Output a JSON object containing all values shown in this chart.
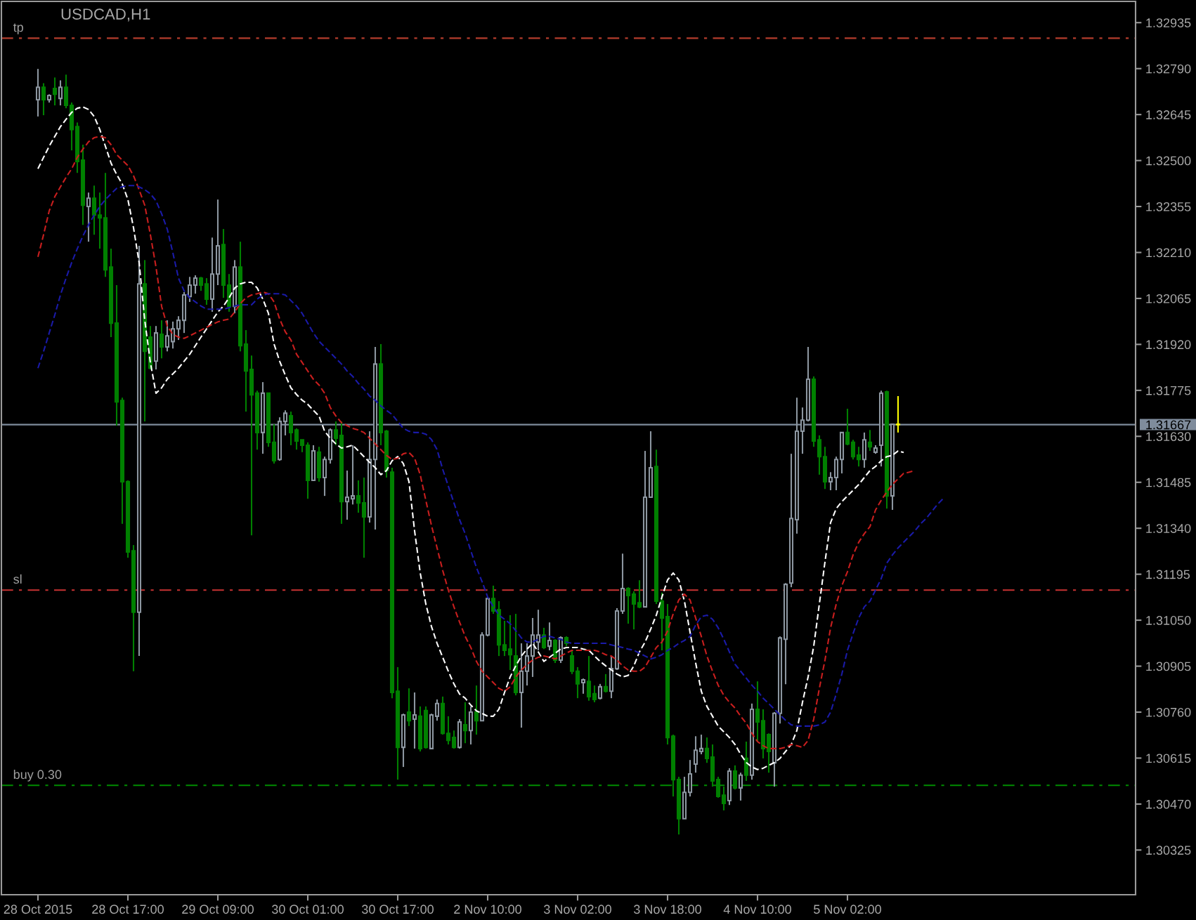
{
  "chart_data": {
    "type": "candlestick",
    "title": "USDCAD,H1",
    "categories": [
      "28 Oct 2015",
      null,
      null,
      null,
      null,
      null,
      null,
      null,
      null,
      null,
      null,
      null,
      null,
      null,
      null,
      null,
      "28 Oct 17:00",
      null,
      null,
      null,
      null,
      null,
      null,
      null,
      null,
      null,
      null,
      null,
      null,
      null,
      null,
      null,
      "29 Oct 09:00",
      null,
      null,
      null,
      null,
      null,
      null,
      null,
      null,
      null,
      null,
      null,
      null,
      null,
      null,
      null,
      "30 Oct 01:00",
      null,
      null,
      null,
      null,
      null,
      null,
      null,
      null,
      null,
      null,
      null,
      null,
      null,
      null,
      null,
      "30 Oct 17:00",
      null,
      null,
      null,
      null,
      null,
      null,
      null,
      null,
      null,
      null,
      null,
      null,
      null,
      null,
      null,
      "2 Nov 10:00",
      null,
      null,
      null,
      null,
      null,
      null,
      null,
      null,
      null,
      null,
      null,
      null,
      null,
      null,
      null,
      "3 Nov 02:00",
      null,
      null,
      null,
      null,
      null,
      null,
      null,
      null,
      null,
      null,
      null,
      null,
      null,
      null,
      null,
      "3 Nov 18:00",
      null,
      null,
      null,
      null,
      null,
      null,
      null,
      null,
      null,
      null,
      null,
      null,
      null,
      null,
      null,
      "4 Nov 10:00",
      null,
      null,
      null,
      null,
      null,
      null,
      null,
      null,
      null,
      null,
      null,
      null,
      null,
      null,
      null,
      "5 Nov 02:00",
      null,
      null,
      null,
      null,
      null,
      null,
      null,
      null,
      null,
      null,
      null,
      null,
      null,
      null,
      null,
      null,
      null
    ],
    "ohlc": [
      [
        1.32692,
        1.32789,
        1.32639,
        1.32731
      ],
      [
        1.32731,
        1.32744,
        1.32643,
        1.32692
      ],
      [
        1.32692,
        1.32709,
        1.32683,
        1.32705
      ],
      [
        1.32727,
        1.32762,
        1.32674,
        1.32709
      ],
      [
        1.32696,
        1.32753,
        1.32674,
        1.32731
      ],
      [
        1.32731,
        1.32771,
        1.32665,
        1.32674
      ],
      [
        1.32674,
        1.32683,
        1.32532,
        1.32598
      ],
      [
        1.32607,
        1.3262,
        1.32461,
        1.32497
      ],
      [
        1.32501,
        1.3255,
        1.32297,
        1.32359
      ],
      [
        1.32355,
        1.32399,
        1.32244,
        1.32381
      ],
      [
        1.32381,
        1.32421,
        1.32266,
        1.32328
      ],
      [
        1.32328,
        1.32399,
        1.32222,
        1.32319
      ],
      [
        1.32319,
        1.32461,
        1.32133,
        1.32155
      ],
      [
        1.32164,
        1.32222,
        1.31943,
        1.31987
      ],
      [
        1.31987,
        1.32107,
        1.31664,
        1.31739
      ],
      [
        1.31743,
        1.31752,
        1.31354,
        1.31487
      ],
      [
        1.31487,
        1.31491,
        1.31247,
        1.31265
      ],
      [
        1.31269,
        1.31287,
        1.30889,
        1.31075
      ],
      [
        1.31075,
        1.32231,
        1.30937,
        1.32111
      ],
      [
        1.32111,
        1.32186,
        1.31677,
        1.31898
      ],
      [
        1.31943,
        1.31978,
        1.31841,
        1.31845
      ],
      [
        1.31867,
        1.31978,
        1.31841,
        1.31956
      ],
      [
        1.31952,
        1.31996,
        1.31876,
        1.31912
      ],
      [
        1.31912,
        1.31996,
        1.31898,
        1.31947
      ],
      [
        1.31929,
        1.31992,
        1.31907,
        1.31969
      ],
      [
        1.31969,
        1.32009,
        1.31934,
        1.31996
      ],
      [
        1.31996,
        1.32085,
        1.31956,
        1.32076
      ],
      [
        1.32071,
        1.32133,
        1.32054,
        1.32107
      ],
      [
        1.32107,
        1.32138,
        1.3208,
        1.32129
      ],
      [
        1.32129,
        1.32133,
        1.32089,
        1.32107
      ],
      [
        1.32111,
        1.32129,
        1.32045,
        1.32063
      ],
      [
        1.32063,
        1.32257,
        1.32023,
        1.32142
      ],
      [
        1.32142,
        1.32377,
        1.32107,
        1.32231
      ],
      [
        1.32235,
        1.32284,
        1.32067,
        1.32107
      ],
      [
        1.32107,
        1.32142,
        1.32023,
        1.3204
      ],
      [
        1.3204,
        1.32186,
        1.32018,
        1.32164
      ],
      [
        1.32164,
        1.32244,
        1.31898,
        1.31916
      ],
      [
        1.31921,
        1.31965,
        1.31708,
        1.31836
      ],
      [
        1.31841,
        1.31885,
        1.31318,
        1.31761
      ],
      [
        1.31766,
        1.31774,
        1.31588,
        1.31642
      ],
      [
        1.31642,
        1.31801,
        1.31575,
        1.31766
      ],
      [
        1.31766,
        1.31766,
        1.31597,
        1.31611
      ],
      [
        1.31611,
        1.31668,
        1.31544,
        1.31553
      ],
      [
        1.31557,
        1.3169,
        1.31553,
        1.31677
      ],
      [
        1.31677,
        1.31712,
        1.31633,
        1.31703
      ],
      [
        1.31695,
        1.31708,
        1.31602,
        1.31642
      ],
      [
        1.3165,
        1.31655,
        1.31588,
        1.31615
      ],
      [
        1.31619,
        1.31619,
        1.3158,
        1.31602
      ],
      [
        1.31602,
        1.31611,
        1.31433,
        1.31491
      ],
      [
        1.31491,
        1.31602,
        1.31491,
        1.31584
      ],
      [
        1.3158,
        1.31597,
        1.31487,
        1.315
      ],
      [
        1.315,
        1.31566,
        1.31442,
        1.31557
      ],
      [
        1.31557,
        1.31655,
        1.31544,
        1.3165
      ],
      [
        1.3165,
        1.31677,
        1.31602,
        1.31624
      ],
      [
        1.31633,
        1.31677,
        1.31354,
        1.31424
      ],
      [
        1.31424,
        1.31522,
        1.31367,
        1.31438
      ],
      [
        1.31433,
        1.31602,
        1.31415,
        1.31442
      ],
      [
        1.31442,
        1.31491,
        1.31389,
        1.3142
      ],
      [
        1.3142,
        1.315,
        1.31247,
        1.31376
      ],
      [
        1.31376,
        1.31646,
        1.31358,
        1.31557
      ],
      [
        1.31557,
        1.31912,
        1.31336,
        1.31858
      ],
      [
        1.31858,
        1.31921,
        1.31602,
        1.31642
      ],
      [
        1.31646,
        1.3165,
        1.315,
        1.31522
      ],
      [
        1.31517,
        1.31531,
        1.30804,
        1.30822
      ],
      [
        1.30826,
        1.30902,
        1.30547,
        1.30649
      ],
      [
        1.30649,
        1.30755,
        1.30587,
        1.30751
      ],
      [
        1.3076,
        1.30835,
        1.30716,
        1.30733
      ],
      [
        1.30738,
        1.30822,
        1.30645,
        1.30751
      ],
      [
        1.30747,
        1.30778,
        1.30636,
        1.30645
      ],
      [
        1.30765,
        1.30778,
        1.30645,
        1.30649
      ],
      [
        1.30645,
        1.30755,
        1.30645,
        1.30751
      ],
      [
        1.30747,
        1.308,
        1.30733,
        1.30787
      ],
      [
        1.30787,
        1.30809,
        1.30689,
        1.30693
      ],
      [
        1.30693,
        1.30747,
        1.30658,
        1.30671
      ],
      [
        1.3068,
        1.30702,
        1.30645,
        1.30649
      ],
      [
        1.30649,
        1.30738,
        1.30645,
        1.30729
      ],
      [
        1.3072,
        1.30791,
        1.30662,
        1.30702
      ],
      [
        1.30702,
        1.30778,
        1.30658,
        1.3076
      ],
      [
        1.3076,
        1.30844,
        1.30689,
        1.30733
      ],
      [
        1.30733,
        1.31012,
        1.30733,
        1.31003
      ],
      [
        1.31003,
        1.31123,
        1.30999,
        1.31118
      ],
      [
        1.31118,
        1.31159,
        1.3107,
        1.31079
      ],
      [
        1.31083,
        1.3111,
        1.30937,
        1.30972
      ],
      [
        1.30972,
        1.31048,
        1.30937,
        1.30955
      ],
      [
        1.30959,
        1.31066,
        1.30893,
        1.30941
      ],
      [
        1.30937,
        1.3107,
        1.30813,
        1.30822
      ],
      [
        1.30822,
        1.30977,
        1.30711,
        1.30889
      ],
      [
        1.30889,
        1.30977,
        1.30844,
        1.30937
      ],
      [
        1.30937,
        1.31057,
        1.30871,
        1.31003
      ],
      [
        1.30981,
        1.31083,
        1.30955,
        1.31003
      ],
      [
        1.31003,
        1.31026,
        1.30959,
        1.30964
      ],
      [
        1.30968,
        1.31043,
        1.30955,
        1.30986
      ],
      [
        1.30986,
        1.3099,
        1.30915,
        1.30924
      ],
      [
        1.30924,
        1.30999,
        1.30915,
        1.30995
      ],
      [
        1.30995,
        1.30999,
        1.30968,
        1.30977
      ],
      [
        1.30937,
        1.30955,
        1.3088,
        1.30889
      ],
      [
        1.30889,
        1.30902,
        1.30804,
        1.30849
      ],
      [
        1.30853,
        1.30866,
        1.30818,
        1.30862
      ],
      [
        1.30857,
        1.30937,
        1.30796,
        1.30809
      ],
      [
        1.30818,
        1.30844,
        1.30791,
        1.308
      ],
      [
        1.30804,
        1.30849,
        1.308,
        1.3084
      ],
      [
        1.3084,
        1.3088,
        1.30822,
        1.30826
      ],
      [
        1.30826,
        1.30937,
        1.30804,
        1.30897
      ],
      [
        1.30897,
        1.31088,
        1.30893,
        1.31079
      ],
      [
        1.31079,
        1.3126,
        1.3107,
        1.3115
      ],
      [
        1.3115,
        1.31154,
        1.31039,
        1.31128
      ],
      [
        1.31132,
        1.31141,
        1.31021,
        1.31101
      ],
      [
        1.31105,
        1.31176,
        1.31088,
        1.31092
      ],
      [
        1.31092,
        1.31584,
        1.31092,
        1.31438
      ],
      [
        1.31438,
        1.31646,
        1.31438,
        1.31531
      ],
      [
        1.31535,
        1.31588,
        1.31101,
        1.3111
      ],
      [
        1.3111,
        1.31137,
        1.30955,
        1.31057
      ],
      [
        1.31061,
        1.31101,
        1.30658,
        1.3068
      ],
      [
        1.30684,
        1.30689,
        1.30494,
        1.30547
      ],
      [
        1.30547,
        1.30556,
        1.30374,
        1.30424
      ],
      [
        1.30424,
        1.30556,
        1.30424,
        1.30507
      ],
      [
        1.30507,
        1.30609,
        1.30494,
        1.30565
      ],
      [
        1.30596,
        1.30684,
        1.30569,
        1.3064
      ],
      [
        1.30636,
        1.30689,
        1.30627,
        1.30645
      ],
      [
        1.30645,
        1.3068,
        1.306,
        1.30614
      ],
      [
        1.30618,
        1.30658,
        1.30525,
        1.30543
      ],
      [
        1.30547,
        1.30556,
        1.3049,
        1.30494
      ],
      [
        1.30498,
        1.30525,
        1.3045,
        1.30472
      ],
      [
        1.30481,
        1.30583,
        1.30467,
        1.30574
      ],
      [
        1.30574,
        1.30592,
        1.30516,
        1.30521
      ],
      [
        1.30521,
        1.30569,
        1.30481,
        1.30561
      ],
      [
        1.30614,
        1.30667,
        1.30543,
        1.30561
      ],
      [
        1.30561,
        1.30787,
        1.30547,
        1.30769
      ],
      [
        1.30769,
        1.30857,
        1.30667,
        1.30729
      ],
      [
        1.30733,
        1.30769,
        1.30614,
        1.30645
      ],
      [
        1.30689,
        1.30693,
        1.30569,
        1.30636
      ],
      [
        1.306,
        1.3076,
        1.30525,
        1.30756
      ],
      [
        1.30756,
        1.30999,
        1.30724,
        1.30994
      ],
      [
        1.3099,
        1.31167,
        1.30848,
        1.31163
      ],
      [
        1.31167,
        1.31575,
        1.31154,
        1.31371
      ],
      [
        1.31367,
        1.31752,
        1.31323,
        1.31646
      ],
      [
        1.31646,
        1.31721,
        1.31575,
        1.31681
      ],
      [
        1.31681,
        1.31912,
        1.31677,
        1.3181
      ],
      [
        1.3181,
        1.31819,
        1.31597,
        1.31615
      ],
      [
        1.31619,
        1.31633,
        1.31509,
        1.31566
      ],
      [
        1.31566,
        1.31597,
        1.31464,
        1.31487
      ],
      [
        1.31487,
        1.31517,
        1.3146,
        1.315
      ],
      [
        1.315,
        1.31566,
        1.3146,
        1.31557
      ],
      [
        1.31557,
        1.31642,
        1.31513,
        1.31642
      ],
      [
        1.31642,
        1.31717,
        1.31602,
        1.31606
      ],
      [
        1.31611,
        1.31619,
        1.31557,
        1.31566
      ],
      [
        1.31571,
        1.31597,
        1.31535,
        1.31557
      ],
      [
        1.31557,
        1.31642,
        1.31531,
        1.31619
      ],
      [
        1.31611,
        1.3165,
        1.31584,
        1.31597
      ],
      [
        1.3158,
        1.31602,
        1.31575,
        1.31593
      ],
      [
        1.31602,
        1.31774,
        1.31535,
        1.31766
      ],
      [
        1.3177,
        1.31774,
        1.31402,
        1.31442
      ],
      [
        1.31442,
        1.31668,
        1.31398,
        1.31668
      ],
      [
        1.31668,
        1.31757,
        1.31642,
        1.31667
      ],
      null,
      null,
      null,
      null,
      null,
      null,
      null,
      null
    ],
    "colors": [
      "#8c96a0",
      "#008000",
      "#8c96a0",
      "#008000",
      "#8c96a0",
      "#008000",
      "#008000",
      "#008000",
      "#008000",
      "#8c96a0",
      "#008000",
      "#008000",
      "#008000",
      "#008000",
      "#008000",
      "#008000",
      "#008000",
      "#008000",
      "#8c96a0",
      "#008000",
      "#008000",
      "#8c96a0",
      "#008000",
      "#8c96a0",
      "#8c96a0",
      "#8c96a0",
      "#8c96a0",
      "#8c96a0",
      "#8c96a0",
      "#008000",
      "#008000",
      "#8c96a0",
      "#8c96a0",
      "#008000",
      "#008000",
      "#8c96a0",
      "#008000",
      "#008000",
      "#008000",
      "#008000",
      "#8c96a0",
      "#008000",
      "#008000",
      "#8c96a0",
      "#8c96a0",
      "#008000",
      "#008000",
      "#008000",
      "#008000",
      "#8c96a0",
      "#008000",
      "#8c96a0",
      "#8c96a0",
      "#008000",
      "#008000",
      "#8c96a0",
      "#8c96a0",
      "#008000",
      "#008000",
      "#8c96a0",
      "#8c96a0",
      "#008000",
      "#008000",
      "#008000",
      "#008000",
      "#8c96a0",
      "#008000",
      "#8c96a0",
      "#008000",
      "#008000",
      "#8c96a0",
      "#8c96a0",
      "#008000",
      "#008000",
      "#008000",
      "#8c96a0",
      "#008000",
      "#8c96a0",
      "#008000",
      "#8c96a0",
      "#8c96a0",
      "#008000",
      "#008000",
      "#008000",
      "#008000",
      "#008000",
      "#8c96a0",
      "#8c96a0",
      "#8c96a0",
      "#8c96a0",
      "#008000",
      "#8c96a0",
      "#008000",
      "#8c96a0",
      "#008000",
      "#008000",
      "#008000",
      "#8c96a0",
      "#008000",
      "#008000",
      "#8c96a0",
      "#008000",
      "#8c96a0",
      "#8c96a0",
      "#8c96a0",
      "#008000",
      "#008000",
      "#008000",
      "#8c96a0",
      "#8c96a0",
      "#008000",
      "#008000",
      "#008000",
      "#008000",
      "#008000",
      "#8c96a0",
      "#8c96a0",
      "#8c96a0",
      "#8c96a0",
      "#008000",
      "#008000",
      "#008000",
      "#008000",
      "#8c96a0",
      "#008000",
      "#8c96a0",
      "#008000",
      "#8c96a0",
      "#008000",
      "#008000",
      "#008000",
      "#8c96a0",
      "#8c96a0",
      "#8c96a0",
      "#8c96a0",
      "#8c96a0",
      "#8c96a0",
      "#8c96a0",
      "#008000",
      "#008000",
      "#008000",
      "#8c96a0",
      "#8c96a0",
      "#8c96a0",
      "#008000",
      "#008000",
      "#008000",
      "#8c96a0",
      "#008000",
      "#8c96a0",
      "#8c96a0",
      "#008000",
      "#8c96a0",
      "#ffff00",
      null,
      null,
      null,
      null,
      null,
      null,
      null,
      null
    ],
    "line_style": "dashed",
    "series": [
      {
        "type": "line",
        "color": "#ffffff",
        "values": [
          1.32474,
          1.3251,
          1.32545,
          1.32576,
          1.32607,
          1.3263,
          1.32652,
          1.32665,
          1.32669,
          1.32661,
          1.32639,
          1.32598,
          1.32545,
          1.32492,
          1.32456,
          1.32426,
          1.32377,
          1.32288,
          1.32178,
          1.31996,
          1.31863,
          1.31766,
          1.31783,
          1.3181,
          1.31827,
          1.31845,
          1.31867,
          1.31889,
          1.31916,
          1.31943,
          1.31969,
          1.31996,
          1.32022,
          1.32041,
          1.32067,
          1.32098,
          1.32111,
          1.32116,
          1.32116,
          1.32098,
          1.32063,
          1.32018,
          1.31921,
          1.31867,
          1.31823,
          1.31783,
          1.31762,
          1.31744,
          1.31731,
          1.31712,
          1.31694,
          1.31646,
          1.31624,
          1.31606,
          1.31593,
          1.31597,
          1.31602,
          1.31584,
          1.31566,
          1.31548,
          1.31531,
          1.31509,
          1.31522,
          1.31553,
          1.31566,
          1.31544,
          1.31487,
          1.31332,
          1.31199,
          1.31101,
          1.3103,
          1.30977,
          1.30933,
          1.30889,
          1.30849,
          1.30817,
          1.30804,
          1.30782,
          1.30764,
          1.30756,
          1.30747,
          1.30747,
          1.30769,
          1.30822,
          1.30871,
          1.30906,
          1.30937,
          1.30959,
          1.30977,
          1.3095,
          1.3092,
          1.30933,
          1.30946,
          1.30959,
          1.30964,
          1.30964,
          1.30964,
          1.30959,
          1.30955,
          1.30937,
          1.3092,
          1.30906,
          1.30893,
          1.3088,
          1.30871,
          1.30876,
          1.30906,
          1.3095,
          1.30981,
          1.31022,
          1.31066,
          1.31123,
          1.31177,
          1.31199,
          1.31177,
          1.3111,
          1.31012,
          1.30915,
          1.30826,
          1.30778,
          1.30747,
          1.30716,
          1.30698,
          1.3068,
          1.30658,
          1.30627,
          1.30601,
          1.30587,
          1.30579,
          1.30583,
          1.30592,
          1.30601,
          1.30614,
          1.30636,
          1.30658,
          1.30702,
          1.30791,
          1.30871,
          1.30968,
          1.31101,
          1.31234,
          1.31358,
          1.31402,
          1.31424,
          1.31442,
          1.3146,
          1.31478,
          1.315,
          1.31522,
          1.31535,
          1.31553,
          1.31566,
          1.3157,
          1.31584,
          1.31579,
          null,
          null,
          null,
          null,
          null,
          null,
          null
        ]
      },
      {
        "type": "line",
        "color": "#c81e1e",
        "values": [
          1.32196,
          1.32266,
          1.32341,
          1.32386,
          1.32417,
          1.32447,
          1.32474,
          1.3251,
          1.32536,
          1.32559,
          1.32572,
          1.32576,
          1.32572,
          1.3255,
          1.32519,
          1.32501,
          1.32484,
          1.32452,
          1.32408,
          1.32359,
          1.32266,
          1.32164,
          1.3204,
          1.31978,
          1.31952,
          1.31943,
          1.31939,
          1.31947,
          1.31956,
          1.31965,
          1.31974,
          1.31983,
          1.31991,
          1.31996,
          1.32,
          1.32022,
          1.32049,
          1.32067,
          1.32076,
          1.3208,
          1.32085,
          1.3208,
          1.32054,
          1.32,
          1.3196,
          1.31934,
          1.31889,
          1.31863,
          1.31836,
          1.3181,
          1.31792,
          1.31766,
          1.31721,
          1.31694,
          1.31673,
          1.31664,
          1.31655,
          1.3165,
          1.31642,
          1.31624,
          1.31606,
          1.31588,
          1.3157,
          1.31557,
          1.31561,
          1.31575,
          1.31579,
          1.31561,
          1.31509,
          1.31428,
          1.31349,
          1.31278,
          1.31207,
          1.31145,
          1.31092,
          1.31044,
          1.30999,
          1.30964,
          1.3092,
          1.30889,
          1.30871,
          1.30853,
          1.30835,
          1.30826,
          1.3084,
          1.30871,
          1.30893,
          1.30911,
          1.30924,
          1.30933,
          1.30937,
          1.30933,
          1.30928,
          1.30937,
          1.30946,
          1.30955,
          1.30955,
          1.30955,
          1.30955,
          1.30955,
          1.3095,
          1.30941,
          1.30937,
          1.30924,
          1.30906,
          1.30893,
          1.30889,
          1.30889,
          1.30902,
          1.30933,
          1.30964,
          1.30981,
          1.31016,
          1.3107,
          1.31114,
          1.31132,
          1.31114,
          1.31057,
          1.30999,
          1.30937,
          1.30889,
          1.30845,
          1.30813,
          1.30791,
          1.30773,
          1.30747,
          1.30725,
          1.30693,
          1.30667,
          1.30654,
          1.30645,
          1.30645,
          1.30645,
          1.30649,
          1.30658,
          1.30654,
          1.30649,
          1.30671,
          1.30738,
          1.30835,
          1.30924,
          1.31026,
          1.31101,
          1.31159,
          1.31203,
          1.31256,
          1.31296,
          1.31323,
          1.31345,
          1.31398,
          1.31428,
          1.31455,
          1.31478,
          1.31496,
          1.31513,
          1.31517,
          1.31522,
          null,
          null,
          null,
          null,
          null
        ]
      },
      {
        "type": "line",
        "color": "#1a1aa8",
        "values": [
          1.31845,
          1.31898,
          1.31956,
          1.32013,
          1.32076,
          1.32129,
          1.32178,
          1.32222,
          1.32262,
          1.32297,
          1.32328,
          1.32355,
          1.32377,
          1.32395,
          1.32412,
          1.32417,
          1.32421,
          1.32421,
          1.32417,
          1.32408,
          1.32395,
          1.32373,
          1.32332,
          1.32284,
          1.32209,
          1.32129,
          1.32089,
          1.32067,
          1.32054,
          1.32041,
          1.32031,
          1.32031,
          1.32031,
          1.32031,
          1.32036,
          1.32041,
          1.32045,
          1.32045,
          1.32045,
          1.32063,
          1.32076,
          1.3208,
          1.3208,
          1.3208,
          1.32076,
          1.32058,
          1.32041,
          1.32018,
          1.31987,
          1.31956,
          1.3193,
          1.31912,
          1.31894,
          1.31876,
          1.31858,
          1.31836,
          1.31819,
          1.31797,
          1.31779,
          1.31757,
          1.31744,
          1.31726,
          1.31712,
          1.31699,
          1.31677,
          1.31655,
          1.31646,
          1.31642,
          1.31642,
          1.31637,
          1.3162,
          1.31588,
          1.31526,
          1.31473,
          1.3142,
          1.31367,
          1.31323,
          1.31269,
          1.31216,
          1.31172,
          1.31123,
          1.31092,
          1.31066,
          1.31053,
          1.31039,
          1.31017,
          1.30994,
          1.30981,
          1.30981,
          1.3099,
          1.30999,
          1.30999,
          1.30994,
          1.3099,
          1.30981,
          1.30977,
          1.30977,
          1.30977,
          1.30977,
          1.30977,
          1.30977,
          1.30977,
          1.30972,
          1.30968,
          1.30964,
          1.30959,
          1.30955,
          1.30946,
          1.30937,
          1.30928,
          1.30933,
          1.30941,
          1.30955,
          1.30964,
          1.30977,
          1.30986,
          1.30999,
          1.31035,
          1.31061,
          1.31066,
          1.31053,
          1.31026,
          1.3099,
          1.3095,
          1.30911,
          1.30889,
          1.30867,
          1.30845,
          1.30826,
          1.30804,
          1.30787,
          1.30769,
          1.30751,
          1.30734,
          1.3072,
          1.30716,
          1.30716,
          1.30716,
          1.30716,
          1.3072,
          1.30729,
          1.3076,
          1.30817,
          1.3088,
          1.30955,
          1.31008,
          1.31057,
          1.31092,
          1.3111,
          1.31145,
          1.31181,
          1.3123,
          1.31256,
          1.31278,
          1.31296,
          1.31314,
          1.31332,
          1.31354,
          1.31371,
          1.31393,
          1.31415,
          1.31433
        ]
      }
    ],
    "ylim": [
      1.30184,
      1.33002
    ],
    "yticks": [
      1.30325,
      {
        "value": 1.3047,
        "label": "1.30470"
      },
      1.30615,
      {
        "value": 1.3076,
        "label": "1.30760"
      },
      1.30905,
      {
        "value": 1.3105,
        "label": "1.31050"
      },
      1.31195,
      {
        "value": 1.3134,
        "label": "1.31340"
      },
      1.31485,
      {
        "value": 1.3163,
        "label": "1.31630"
      },
      1.31775,
      {
        "value": 1.3192,
        "label": "1.31920"
      },
      1.32065,
      {
        "value": 1.3221,
        "label": "1.32210"
      },
      1.32355,
      {
        "value": 1.325,
        "label": "1.32500"
      },
      1.32645,
      {
        "value": 1.3279,
        "label": "1.32790"
      },
      1.32935
    ],
    "ref_lines": [
      {
        "axis": "y",
        "value": 1.32886,
        "label": "tp",
        "color": "#b43c2c",
        "line_style": "dashed"
      },
      {
        "axis": "y",
        "value": 1.31145,
        "label": "sl",
        "color": "#c83232",
        "line_style": "dashed"
      },
      {
        "axis": "y",
        "value": 1.30529,
        "label": "buy 0.30",
        "color": "#008c00",
        "line_style": "dashed"
      },
      {
        "axis": "y",
        "value": 1.31667,
        "label": "1.31667",
        "color": "#7f8c9c",
        "line_style": "solid"
      }
    ]
  }
}
